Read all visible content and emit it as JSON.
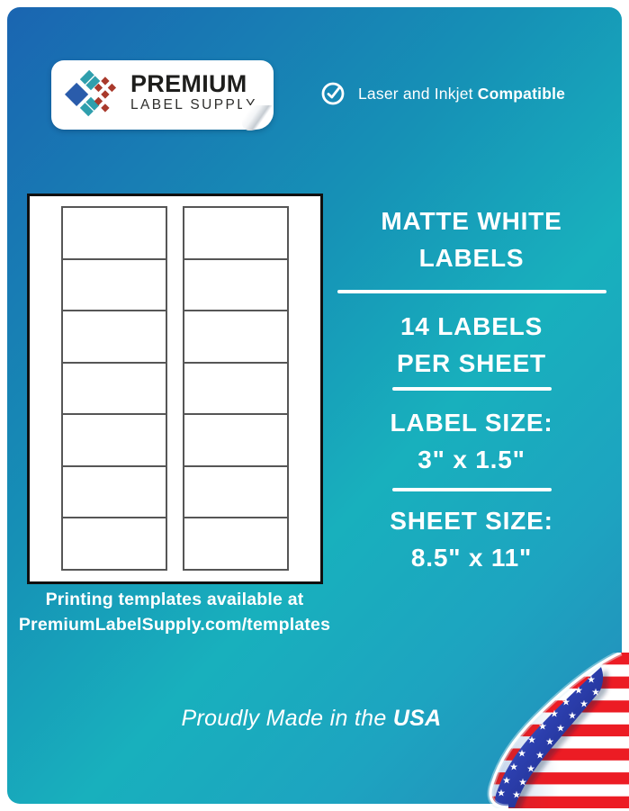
{
  "logo": {
    "line1": "PREMIUM",
    "line2": "LABEL SUPPLY"
  },
  "compatibility": {
    "regular": "Laser and Inkjet",
    "bold": "Compatible"
  },
  "label_sheet": {
    "rows": 7,
    "columns": 2
  },
  "template_note": {
    "line1": "Printing templates available at",
    "line2": "PremiumLabelSupply.com/templates"
  },
  "specs": {
    "title_line1": "MATTE WHITE",
    "title_line2": "LABELS",
    "count_line1": "14 LABELS",
    "count_line2": "PER SHEET",
    "label_size_label": "LABEL SIZE:",
    "label_size_value": "3\" x 1.5\"",
    "sheet_size_label": "SHEET SIZE:",
    "sheet_size_value": "8.5\" x 11\""
  },
  "footer": {
    "regular": "Proudly Made in the",
    "bold": "USA"
  },
  "colors": {
    "background_blue": "#1a65b1",
    "background_teal": "#18b0bd",
    "logo_blue": "#2a5cab",
    "logo_teal": "#2f9fad",
    "logo_red": "#a93a2c",
    "flag_red": "#ec1c24",
    "flag_blue": "#2c3fae",
    "text_white": "#ffffff"
  }
}
